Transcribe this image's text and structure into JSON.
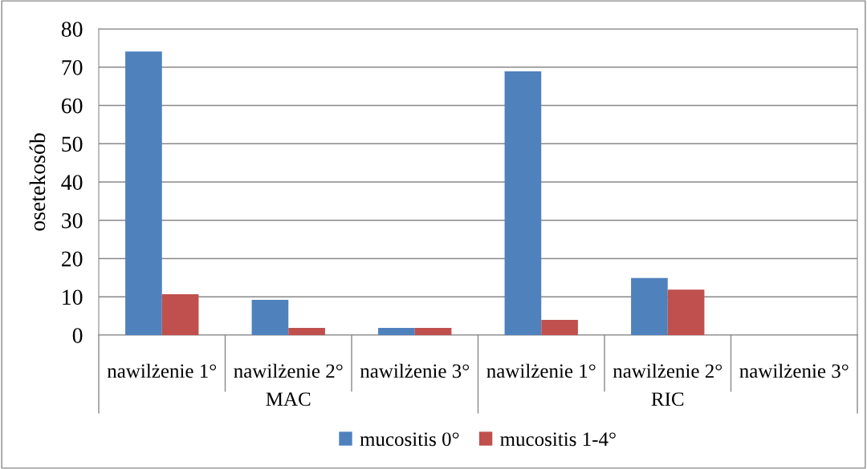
{
  "chart_data": {
    "type": "bar",
    "ylabel": "osetekosób",
    "categories": [
      "nawilżenie 1°",
      "nawilżenie 2°",
      "nawilżenie 3°",
      "nawilżenie 1°",
      "nawilżenie 2°",
      "nawilżenie 3°"
    ],
    "annotations": [
      "MAC",
      "RIC"
    ],
    "series": [
      {
        "name": "mucositis 0°",
        "color": "#4f81bd",
        "values": [
          74.1,
          9.2,
          1.9,
          68.9,
          14.9,
          0
        ]
      },
      {
        "name": "mucositis 1-4°",
        "color": "#c0504d",
        "values": [
          10.7,
          1.9,
          1.9,
          4.0,
          11.9,
          0
        ]
      }
    ],
    "ylim": [
      0,
      80
    ],
    "yticks": [
      0,
      10,
      20,
      30,
      40,
      50,
      60,
      70,
      80
    ],
    "grid": "y",
    "legend": "bottom"
  }
}
